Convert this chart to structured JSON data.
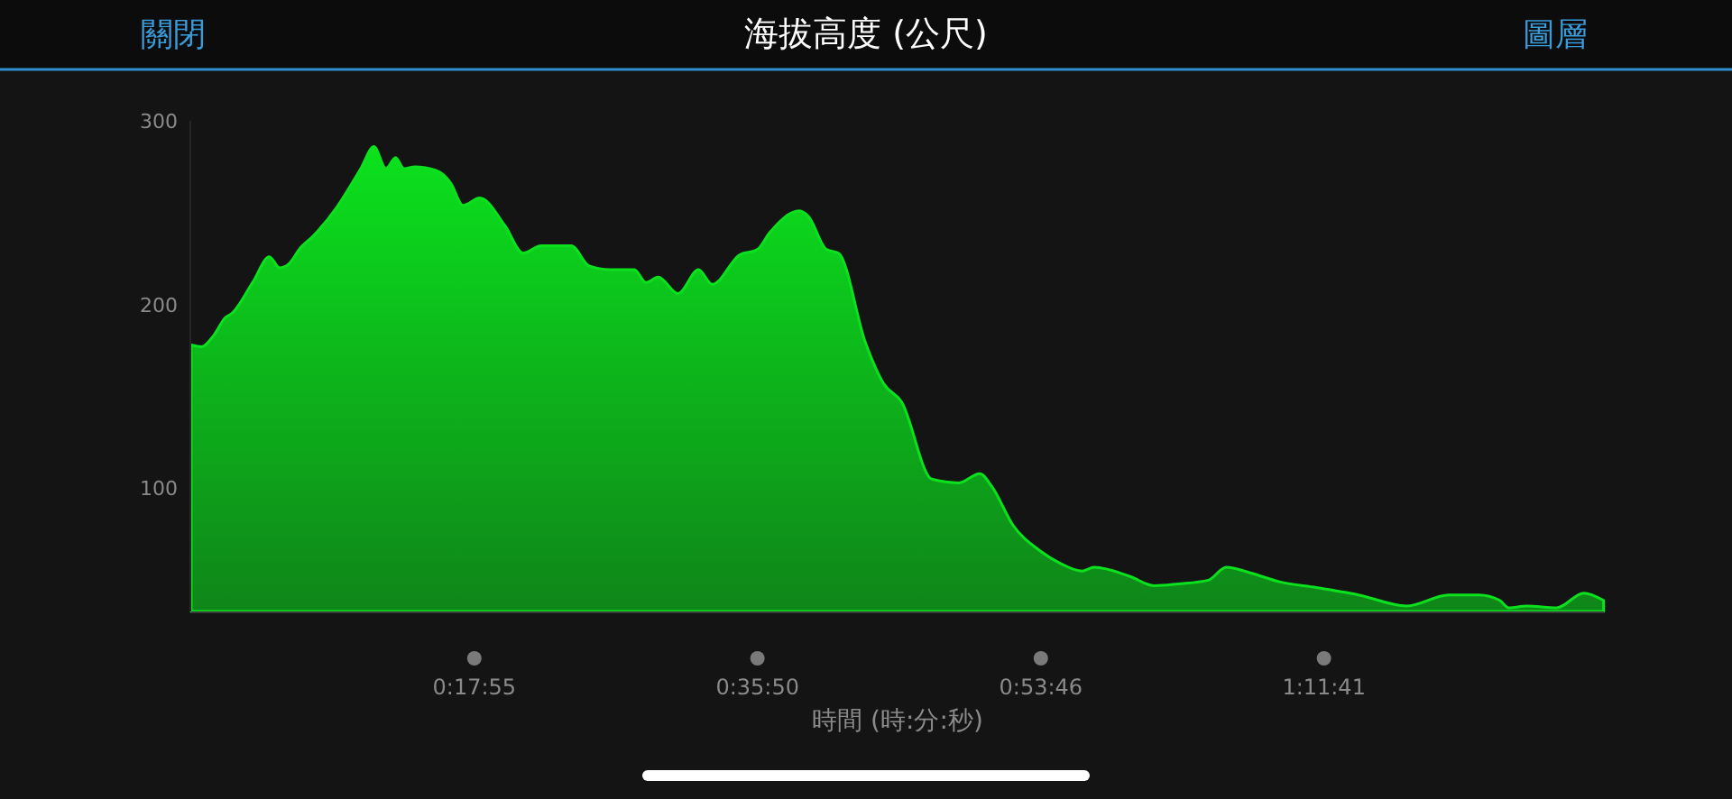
{
  "chart_data": {
    "type": "area",
    "title": "海拔高度 (公尺)",
    "xlabel": "時間 (時:分:秒)",
    "annotations": [
      "關閉",
      "圖層"
    ],
    "xlim": [
      0,
      1.49
    ],
    "ylim": [
      33,
      300
    ],
    "xticks": [
      {
        "value": 0.29861,
        "label": "0:17:55"
      },
      {
        "value": 0.59722,
        "label": "0:35:50"
      },
      {
        "value": 0.89611,
        "label": "0:53:46"
      },
      {
        "value": 1.19472,
        "label": "1:11:41"
      }
    ],
    "yticks": [
      100,
      200,
      300
    ],
    "grid": false,
    "x": [
      0,
      0.0108,
      0.0234,
      0.0361,
      0.0424,
      0.0647,
      0.0824,
      0.0932,
      0.1027,
      0.1154,
      0.128,
      0.1535,
      0.1788,
      0.1927,
      0.2054,
      0.2155,
      0.2244,
      0.2358,
      0.2581,
      0.2739,
      0.2866,
      0.3043,
      0.3309,
      0.35,
      0.369,
      0.4007,
      0.4197,
      0.4418,
      0.4673,
      0.4798,
      0.4926,
      0.5135,
      0.535,
      0.5496,
      0.5782,
      0.5972,
      0.6099,
      0.6415,
      0.651,
      0.67,
      0.6828,
      0.7113,
      0.7303,
      0.7493,
      0.7811,
      0.8096,
      0.8317,
      0.8444,
      0.8667,
      0.8952,
      0.9173,
      0.9395,
      0.9523,
      0.9903,
      1.0156,
      1.0409,
      1.0727,
      1.0917,
      1.117,
      1.1488,
      1.1868,
      1.2311,
      1.2819,
      1.3262,
      1.358,
      1.3802,
      1.3897,
      1.4087,
      1.4403,
      1.4688,
      1.4897
    ],
    "series": [
      {
        "color": "#0be21d",
        "values": [
          178,
          177,
          183,
          193,
          195,
          212,
          226,
          220,
          222,
          231,
          237,
          253,
          274,
          286,
          274,
          280,
          274,
          275,
          273,
          266,
          254,
          258,
          243,
          228,
          232,
          232,
          221,
          219,
          219,
          212,
          215,
          206,
          219,
          211,
          227,
          230,
          239,
          251,
          248,
          230,
          228,
          179,
          157,
          147,
          105,
          103,
          108,
          101,
          80,
          66,
          59,
          55,
          57,
          52,
          47,
          48,
          50,
          57,
          54,
          49,
          46,
          42,
          36,
          42,
          42,
          39,
          35,
          36,
          35,
          43,
          39
        ]
      }
    ]
  }
}
